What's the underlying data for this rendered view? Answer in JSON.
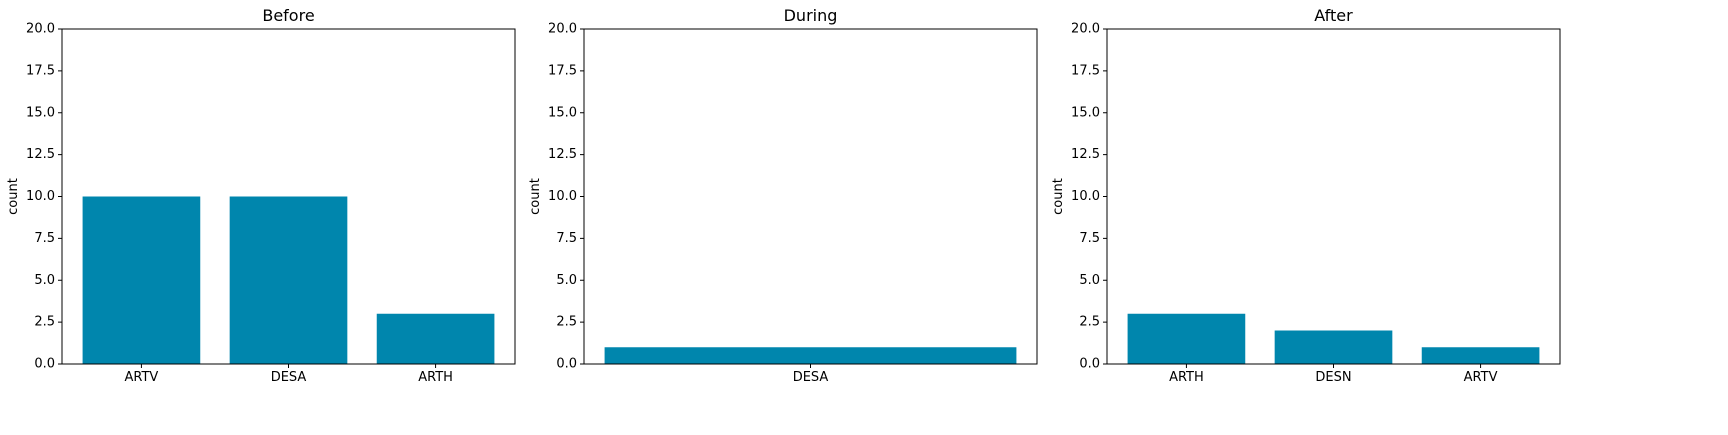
{
  "chart_data": [
    {
      "type": "bar",
      "title": "Before",
      "ylabel": "count",
      "xlabel": "",
      "categories": [
        "ARTV",
        "DESA",
        "ARTH"
      ],
      "values": [
        10,
        10,
        3
      ],
      "ylim": [
        0,
        20
      ],
      "yticks": [
        0.0,
        2.5,
        5.0,
        7.5,
        10.0,
        12.5,
        15.0,
        17.5,
        20.0
      ],
      "ytick_labels": [
        "0.0",
        "2.5",
        "5.0",
        "7.5",
        "10.0",
        "12.5",
        "15.0",
        "17.5",
        "20.0"
      ],
      "color": "#0086ad",
      "grid": false,
      "legend": "none"
    },
    {
      "type": "bar",
      "title": "During",
      "ylabel": "count",
      "xlabel": "",
      "categories": [
        "DESA"
      ],
      "values": [
        1
      ],
      "ylim": [
        0,
        20
      ],
      "yticks": [
        0.0,
        2.5,
        5.0,
        7.5,
        10.0,
        12.5,
        15.0,
        17.5,
        20.0
      ],
      "ytick_labels": [
        "0.0",
        "2.5",
        "5.0",
        "7.5",
        "10.0",
        "12.5",
        "15.0",
        "17.5",
        "20.0"
      ],
      "color": "#0086ad",
      "grid": false,
      "legend": "none"
    },
    {
      "type": "bar",
      "title": "After",
      "ylabel": "count",
      "xlabel": "",
      "categories": [
        "ARTH",
        "DESN",
        "ARTV"
      ],
      "values": [
        3,
        2,
        1
      ],
      "ylim": [
        0,
        20
      ],
      "yticks": [
        0.0,
        2.5,
        5.0,
        7.5,
        10.0,
        12.5,
        15.0,
        17.5,
        20.0
      ],
      "ytick_labels": [
        "0.0",
        "2.5",
        "5.0",
        "7.5",
        "10.0",
        "12.5",
        "15.0",
        "17.5",
        "20.0"
      ],
      "color": "#0086ad",
      "grid": false,
      "legend": "none"
    }
  ]
}
